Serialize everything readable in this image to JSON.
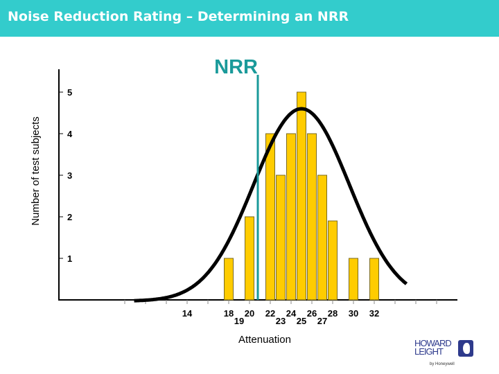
{
  "slide": {
    "title": "Noise Reduction Rating – Determining an NRR",
    "header_color": "#33cccc"
  },
  "chart_data": {
    "type": "bar",
    "title": "",
    "xlabel": "Attenuation",
    "ylabel": "Number of test subjects",
    "ylim": [
      0,
      5.5
    ],
    "yticks": [
      1,
      2,
      3,
      4,
      5
    ],
    "xtick_labels_row1": [
      "14",
      "18",
      "20",
      "22",
      "24",
      "26",
      "28",
      "30",
      "32"
    ],
    "xtick_labels_row2": [
      "19",
      "23",
      "25",
      "27"
    ],
    "bars": [
      {
        "x": 18,
        "y": 1
      },
      {
        "x": 20,
        "y": 2
      },
      {
        "x": 22,
        "y": 4
      },
      {
        "x": 23,
        "y": 3
      },
      {
        "x": 24,
        "y": 4
      },
      {
        "x": 25,
        "y": 5
      },
      {
        "x": 26,
        "y": 4
      },
      {
        "x": 27,
        "y": 3
      },
      {
        "x": 28,
        "y": 1.9
      },
      {
        "x": 30,
        "y": 1
      },
      {
        "x": 32,
        "y": 1
      }
    ],
    "curve": {
      "type": "normal",
      "mean": 25,
      "sd": 4.6,
      "peak": 4.63
    },
    "nrr_marker": {
      "label": "NRR",
      "x": 20.8
    },
    "bar_color": "#ffcc00",
    "curve_color": "#000000",
    "marker_color": "#1a9a9a",
    "grid": false
  },
  "logo": {
    "line1": "HOWARD",
    "line2": "LEIGHT",
    "sub": "by Honeywell"
  }
}
